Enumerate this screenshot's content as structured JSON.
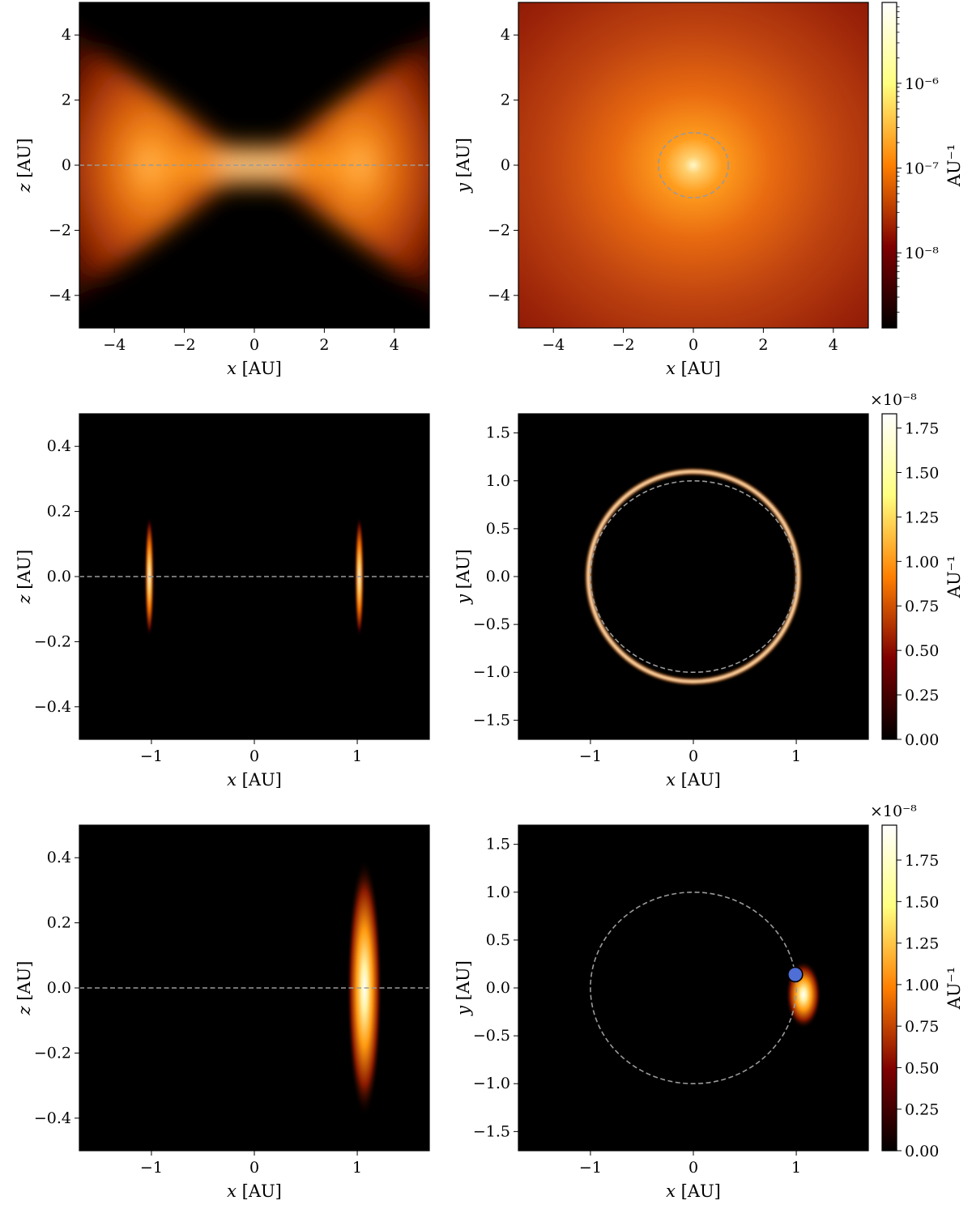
{
  "chart_data": [
    {
      "type": "heatmap",
      "plane": "xz",
      "xlabel": "x [AU]",
      "ylabel": "z [AU]",
      "xlim": [
        -5,
        5
      ],
      "ylim": [
        -5,
        5
      ],
      "xticks": [
        -4,
        -2,
        0,
        2,
        4
      ],
      "yticks": [
        -4,
        -2,
        0,
        2,
        4
      ],
      "xtick_labels": [
        "−4",
        "−2",
        "0",
        "2",
        "4"
      ],
      "ytick_labels": [
        "−4",
        "−2",
        "0",
        "2",
        "4"
      ],
      "overlay": {
        "kind": "dashed-line",
        "z": 0,
        "color": "#9a9a9a"
      },
      "colormap": "afmhot",
      "colorscale": "log",
      "colorbar": "shared with panel 2"
    },
    {
      "type": "heatmap",
      "plane": "xy",
      "xlabel": "x [AU]",
      "ylabel": "y [AU]",
      "xlim": [
        -5,
        5
      ],
      "ylim": [
        -5,
        5
      ],
      "xticks": [
        -4,
        -2,
        0,
        2,
        4
      ],
      "yticks": [
        -4,
        -2,
        0,
        2,
        4
      ],
      "xtick_labels": [
        "−4",
        "−2",
        "0",
        "2",
        "4"
      ],
      "ytick_labels": [
        "−4",
        "−2",
        "0",
        "2",
        "4"
      ],
      "overlay": {
        "kind": "dashed-circle",
        "radius_au": 1,
        "color": "#9a9a9a"
      },
      "colormap": "afmhot",
      "colorscale": "log",
      "colorbar": {
        "label": "AU⁻¹",
        "scale": "log",
        "range": [
          1.3e-09,
          9e-06
        ],
        "ticks": [
          1e-08,
          1e-07,
          1e-06
        ],
        "tick_labels": [
          "10⁻⁸",
          "10⁻⁷",
          "10⁻⁶"
        ]
      }
    },
    {
      "type": "heatmap",
      "plane": "xz",
      "xlabel": "x [AU]",
      "ylabel": "z [AU]",
      "xlim": [
        -1.7,
        1.7
      ],
      "ylim": [
        -0.5,
        0.5
      ],
      "xticks": [
        -1,
        0,
        1
      ],
      "yticks": [
        -0.4,
        -0.2,
        0.0,
        0.2,
        0.4
      ],
      "xtick_labels": [
        "−1",
        "0",
        "1"
      ],
      "ytick_labels": [
        "−0.4",
        "−0.2",
        "0.0",
        "0.2",
        "0.4"
      ],
      "overlay": {
        "kind": "dashed-line",
        "z": 0,
        "color": "#9a9a9a"
      },
      "colormap": "afmhot",
      "features": [
        {
          "kind": "thin-vertical-streak",
          "x_au": -1.02,
          "z_au": 0
        },
        {
          "kind": "thin-vertical-streak",
          "x_au": 1.02,
          "z_au": 0
        }
      ]
    },
    {
      "type": "heatmap",
      "plane": "xy",
      "xlabel": "x [AU]",
      "ylabel": "y [AU]",
      "xlim": [
        -1.7,
        1.7
      ],
      "ylim": [
        -1.7,
        1.7
      ],
      "xticks": [
        -1,
        0,
        1
      ],
      "yticks": [
        -1.5,
        -1.0,
        -0.5,
        0.0,
        0.5,
        1.0,
        1.5
      ],
      "xtick_labels": [
        "−1",
        "0",
        "1"
      ],
      "ytick_labels": [
        "−1.5",
        "−1.0",
        "−0.5",
        "0.0",
        "0.5",
        "1.0",
        "1.5"
      ],
      "overlay": {
        "kind": "dashed-circle",
        "radius_au": 1,
        "color": "#9a9a9a"
      },
      "colormap": "afmhot",
      "features": [
        {
          "kind": "bright-ring",
          "radius_au": 1.02
        }
      ],
      "colorbar": {
        "label": "AU⁻¹",
        "scale": "linear",
        "offset": "×10⁻⁸",
        "range": [
          0,
          1.83
        ],
        "ticks": [
          0.0,
          0.25,
          0.5,
          0.75,
          1.0,
          1.25,
          1.5,
          1.75
        ],
        "tick_labels": [
          "0.00",
          "0.25",
          "0.50",
          "0.75",
          "1.00",
          "1.25",
          "1.50",
          "1.75"
        ]
      }
    },
    {
      "type": "heatmap",
      "plane": "xz",
      "xlabel": "x [AU]",
      "ylabel": "z [AU]",
      "xlim": [
        -1.7,
        1.7
      ],
      "ylim": [
        -0.5,
        0.5
      ],
      "xticks": [
        -1,
        0,
        1
      ],
      "yticks": [
        -0.4,
        -0.2,
        0.0,
        0.2,
        0.4
      ],
      "xtick_labels": [
        "−1",
        "0",
        "1"
      ],
      "ytick_labels": [
        "−0.4",
        "−0.2",
        "0.0",
        "0.2",
        "0.4"
      ],
      "overlay": {
        "kind": "dashed-line",
        "z": 0,
        "color": "#9a9a9a"
      },
      "colormap": "afmhot",
      "features": [
        {
          "kind": "elongated-blob",
          "x_au": 1.07,
          "z_au": 0
        }
      ]
    },
    {
      "type": "heatmap",
      "plane": "xy",
      "xlabel": "x [AU]",
      "ylabel": "y [AU]",
      "xlim": [
        -1.7,
        1.7
      ],
      "ylim": [
        -1.7,
        1.7
      ],
      "xticks": [
        -1,
        0,
        1
      ],
      "yticks": [
        -1.5,
        -1.0,
        -0.5,
        0.0,
        0.5,
        1.0,
        1.5
      ],
      "xtick_labels": [
        "−1",
        "0",
        "1"
      ],
      "ytick_labels": [
        "−1.5",
        "−1.0",
        "−0.5",
        "0.0",
        "0.5",
        "1.0",
        "1.5"
      ],
      "overlay": {
        "kind": "dashed-circle",
        "radius_au": 1,
        "color": "#9a9a9a"
      },
      "colormap": "afmhot",
      "features": [
        {
          "kind": "compact-blob",
          "x_au": 1.07,
          "y_au": -0.07
        }
      ],
      "marker": {
        "x_au": 0.99,
        "y_au": 0.14,
        "color": "#4f6fd6"
      },
      "colorbar": {
        "label": "AU⁻¹",
        "scale": "linear",
        "offset": "×10⁻⁸",
        "range": [
          0,
          1.96
        ],
        "ticks": [
          0.0,
          0.25,
          0.5,
          0.75,
          1.0,
          1.25,
          1.5,
          1.75
        ],
        "tick_labels": [
          "0.00",
          "0.25",
          "0.50",
          "0.75",
          "1.00",
          "1.25",
          "1.50",
          "1.75"
        ]
      }
    }
  ]
}
